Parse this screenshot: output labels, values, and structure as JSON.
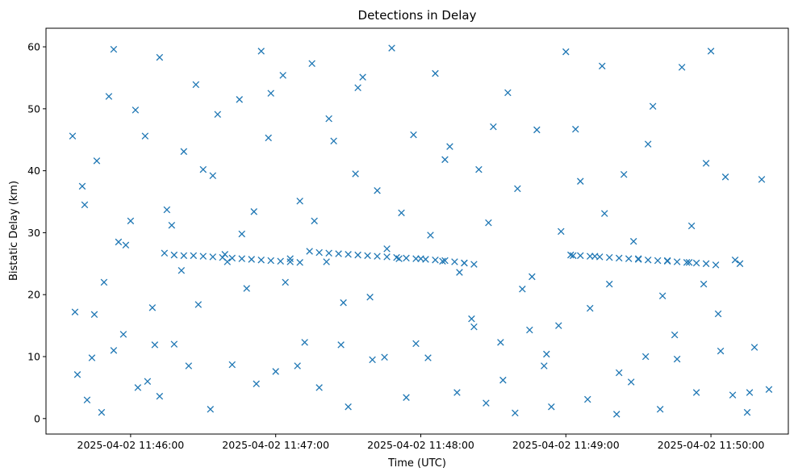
{
  "chart_data": {
    "type": "scatter",
    "title": "Detections in Delay",
    "xlabel": "Time (UTC)",
    "ylabel": "Bistatic Delay (km)",
    "x_ticks": [
      "2025-04-02 11:46:00",
      "2025-04-02 11:47:00",
      "2025-04-02 11:48:00",
      "2025-04-02 11:49:00",
      "2025-04-02 11:50:00"
    ],
    "y_ticks": [
      "0",
      "10",
      "20",
      "30",
      "40",
      "50",
      "60"
    ],
    "xlim": [
      "2025-04-02 11:45:25",
      "2025-04-02 11:50:32"
    ],
    "ylim": [
      -2.5,
      63
    ],
    "grid": false,
    "marker": "x",
    "color": "#1f77b4",
    "series": [
      {
        "x": [
          "2025-04-02 11:45:36",
          "2025-04-02 11:45:38",
          "2025-04-02 11:45:40",
          "2025-04-02 11:45:42",
          "2025-04-02 11:45:44",
          "2025-04-02 11:45:46",
          "2025-04-02 11:45:48",
          "2025-04-02 11:45:51",
          "2025-04-02 11:45:53",
          "2025-04-02 11:45:55",
          "2025-04-02 11:45:57",
          "2025-04-02 11:46:00",
          "2025-04-02 11:46:03",
          "2025-04-02 11:46:06",
          "2025-04-02 11:46:09",
          "2025-04-02 11:46:12",
          "2025-04-02 11:46:15",
          "2025-04-02 11:46:18",
          "2025-04-02 11:46:21",
          "2025-04-02 11:46:24",
          "2025-04-02 11:46:27",
          "2025-04-02 11:46:30",
          "2025-04-02 11:46:33",
          "2025-04-02 11:46:36",
          "2025-04-02 11:46:39",
          "2025-04-02 11:46:42",
          "2025-04-02 11:46:45",
          "2025-04-02 11:46:48",
          "2025-04-02 11:46:51",
          "2025-04-02 11:46:54",
          "2025-04-02 11:46:57",
          "2025-04-02 11:47:00",
          "2025-04-02 11:47:03",
          "2025-04-02 11:47:06",
          "2025-04-02 11:47:09",
          "2025-04-02 11:47:12",
          "2025-04-02 11:47:15",
          "2025-04-02 11:47:18",
          "2025-04-02 11:47:21",
          "2025-04-02 11:47:24",
          "2025-04-02 11:47:27",
          "2025-04-02 11:47:30",
          "2025-04-02 11:47:33",
          "2025-04-02 11:47:36",
          "2025-04-02 11:47:39",
          "2025-04-02 11:47:42",
          "2025-04-02 11:47:45",
          "2025-04-02 11:47:48",
          "2025-04-02 11:47:51",
          "2025-04-02 11:47:54",
          "2025-04-02 11:47:57",
          "2025-04-02 11:48:00",
          "2025-04-02 11:48:03",
          "2025-04-02 11:48:06",
          "2025-04-02 11:48:09",
          "2025-04-02 11:48:12",
          "2025-04-02 11:48:15",
          "2025-04-02 11:48:18",
          "2025-04-02 11:48:21",
          "2025-04-02 11:48:24",
          "2025-04-02 11:48:27",
          "2025-04-02 11:48:30",
          "2025-04-02 11:48:33",
          "2025-04-02 11:48:36",
          "2025-04-02 11:48:39",
          "2025-04-02 11:48:42",
          "2025-04-02 11:48:45",
          "2025-04-02 11:48:48",
          "2025-04-02 11:48:51",
          "2025-04-02 11:48:54",
          "2025-04-02 11:48:57",
          "2025-04-02 11:49:00",
          "2025-04-02 11:49:03",
          "2025-04-02 11:49:06",
          "2025-04-02 11:49:09",
          "2025-04-02 11:49:12",
          "2025-04-02 11:49:15",
          "2025-04-02 11:49:18",
          "2025-04-02 11:49:21",
          "2025-04-02 11:49:24",
          "2025-04-02 11:49:27",
          "2025-04-02 11:49:30",
          "2025-04-02 11:49:33",
          "2025-04-02 11:49:36",
          "2025-04-02 11:49:39",
          "2025-04-02 11:49:42",
          "2025-04-02 11:49:45",
          "2025-04-02 11:49:48",
          "2025-04-02 11:49:51",
          "2025-04-02 11:49:54",
          "2025-04-02 11:49:57",
          "2025-04-02 11:50:00",
          "2025-04-02 11:50:03",
          "2025-04-02 11:50:06",
          "2025-04-02 11:50:09",
          "2025-04-02 11:50:12",
          "2025-04-02 11:50:15",
          "2025-04-02 11:50:18",
          "2025-04-02 11:50:21",
          "2025-04-02 11:50:24",
          "2025-04-02 11:45:37",
          "2025-04-02 11:45:41",
          "2025-04-02 11:45:45",
          "2025-04-02 11:45:49",
          "2025-04-02 11:45:53",
          "2025-04-02 11:45:58",
          "2025-04-02 11:46:02",
          "2025-04-02 11:46:07",
          "2025-04-02 11:46:12",
          "2025-04-02 11:46:17",
          "2025-04-02 11:46:22",
          "2025-04-02 11:46:28",
          "2025-04-02 11:46:34",
          "2025-04-02 11:46:40",
          "2025-04-02 11:46:46",
          "2025-04-02 11:46:52",
          "2025-04-02 11:46:58",
          "2025-04-02 11:47:04",
          "2025-04-02 11:47:10",
          "2025-04-02 11:47:16",
          "2025-04-02 11:47:22",
          "2025-04-02 11:47:28",
          "2025-04-02 11:47:34",
          "2025-04-02 11:47:40",
          "2025-04-02 11:47:46",
          "2025-04-02 11:47:52",
          "2025-04-02 11:47:58",
          "2025-04-02 11:48:04",
          "2025-04-02 11:48:10",
          "2025-04-02 11:48:16",
          "2025-04-02 11:48:22",
          "2025-04-02 11:48:28",
          "2025-04-02 11:48:34",
          "2025-04-02 11:48:40",
          "2025-04-02 11:48:46",
          "2025-04-02 11:48:52",
          "2025-04-02 11:48:58",
          "2025-04-02 11:49:04",
          "2025-04-02 11:49:10",
          "2025-04-02 11:49:16",
          "2025-04-02 11:49:22",
          "2025-04-02 11:49:28",
          "2025-04-02 11:49:34",
          "2025-04-02 11:49:40",
          "2025-04-02 11:49:46",
          "2025-04-02 11:49:52",
          "2025-04-02 11:49:58",
          "2025-04-02 11:50:04",
          "2025-04-02 11:50:10",
          "2025-04-02 11:50:16",
          "2025-04-02 11:46:10",
          "2025-04-02 11:46:14",
          "2025-04-02 11:46:18",
          "2025-04-02 11:46:22",
          "2025-04-02 11:46:26",
          "2025-04-02 11:46:30",
          "2025-04-02 11:46:34",
          "2025-04-02 11:46:38",
          "2025-04-02 11:46:42",
          "2025-04-02 11:46:46",
          "2025-04-02 11:46:50",
          "2025-04-02 11:46:54",
          "2025-04-02 11:46:58",
          "2025-04-02 11:47:02",
          "2025-04-02 11:47:06",
          "2025-04-02 11:47:10",
          "2025-04-02 11:47:14",
          "2025-04-02 11:47:18",
          "2025-04-02 11:47:22",
          "2025-04-02 11:47:26",
          "2025-04-02 11:47:30",
          "2025-04-02 11:47:34",
          "2025-04-02 11:47:38",
          "2025-04-02 11:47:42",
          "2025-04-02 11:47:46",
          "2025-04-02 11:47:50",
          "2025-04-02 11:47:54",
          "2025-04-02 11:47:58",
          "2025-04-02 11:48:02",
          "2025-04-02 11:48:06",
          "2025-04-02 11:48:10",
          "2025-04-02 11:48:14",
          "2025-04-02 11:48:18",
          "2025-04-02 11:48:22",
          "2025-04-02 11:49:02",
          "2025-04-02 11:49:06",
          "2025-04-02 11:49:10",
          "2025-04-02 11:49:14",
          "2025-04-02 11:49:18",
          "2025-04-02 11:49:22",
          "2025-04-02 11:49:26",
          "2025-04-02 11:49:30",
          "2025-04-02 11:49:34",
          "2025-04-02 11:49:38",
          "2025-04-02 11:49:42",
          "2025-04-02 11:49:46",
          "2025-04-02 11:49:50",
          "2025-04-02 11:49:54",
          "2025-04-02 11:49:58",
          "2025-04-02 11:50:02"
        ],
        "y": [
          45.6,
          7.1,
          37.5,
          3.0,
          9.8,
          41.6,
          1.0,
          52.0,
          59.6,
          28.5,
          13.6,
          31.9,
          5.0,
          45.6,
          17.9,
          3.6,
          33.7,
          12.0,
          23.9,
          8.5,
          53.9,
          40.2,
          1.5,
          49.1,
          26.5,
          8.7,
          51.5,
          21.0,
          33.4,
          59.3,
          45.3,
          7.6,
          55.4,
          25.8,
          8.5,
          12.3,
          57.3,
          5.0,
          25.3,
          44.8,
          11.9,
          1.9,
          39.5,
          55.1,
          19.6,
          36.8,
          9.9,
          59.8,
          25.8,
          3.4,
          45.8,
          25.8,
          9.8,
          55.7,
          25.4,
          43.9,
          4.2,
          25.1,
          16.1,
          40.2,
          2.5,
          47.1,
          12.3,
          52.6,
          0.9,
          20.9,
          14.3,
          46.6,
          8.5,
          1.9,
          15.0,
          59.2,
          26.3,
          38.3,
          3.1,
          26.2,
          56.9,
          21.7,
          0.7,
          39.4,
          5.9,
          25.8,
          10.0,
          50.4,
          1.5,
          25.5,
          13.5,
          56.7,
          25.2,
          4.2,
          21.7,
          59.3,
          16.9,
          39.0,
          3.8,
          25.0,
          1.0,
          11.5,
          38.6,
          4.7,
          17.2,
          34.5,
          16.8,
          22.0,
          11.0,
          28.0,
          49.8,
          6.0,
          58.3,
          31.2,
          43.1,
          18.4,
          39.2,
          25.3,
          29.8,
          5.6,
          52.5,
          22.0,
          35.1,
          31.9,
          48.4,
          18.7,
          53.4,
          9.5,
          27.4,
          33.2,
          12.1,
          29.6,
          41.8,
          23.6,
          14.8,
          31.6,
          6.2,
          37.1,
          22.9,
          10.4,
          30.2,
          46.7,
          17.8,
          33.1,
          7.4,
          28.6,
          44.3,
          19.8,
          9.6,
          31.1,
          41.2,
          10.9,
          25.6,
          4.2,
          11.9,
          26.7,
          26.4,
          26.3,
          26.3,
          26.2,
          26.1,
          26.0,
          25.9,
          25.8,
          25.7,
          25.6,
          25.5,
          25.4,
          25.3,
          25.2,
          27.0,
          26.8,
          26.7,
          26.6,
          26.5,
          26.4,
          26.3,
          26.2,
          26.1,
          26.0,
          25.9,
          25.8,
          25.7,
          25.6,
          25.5,
          25.3,
          25.1,
          24.9,
          26.4,
          26.3,
          26.2,
          26.1,
          26.0,
          25.9,
          25.8,
          25.7,
          25.6,
          25.5,
          25.4,
          25.3,
          25.2,
          25.1,
          25.0,
          24.8
        ]
      }
    ]
  }
}
